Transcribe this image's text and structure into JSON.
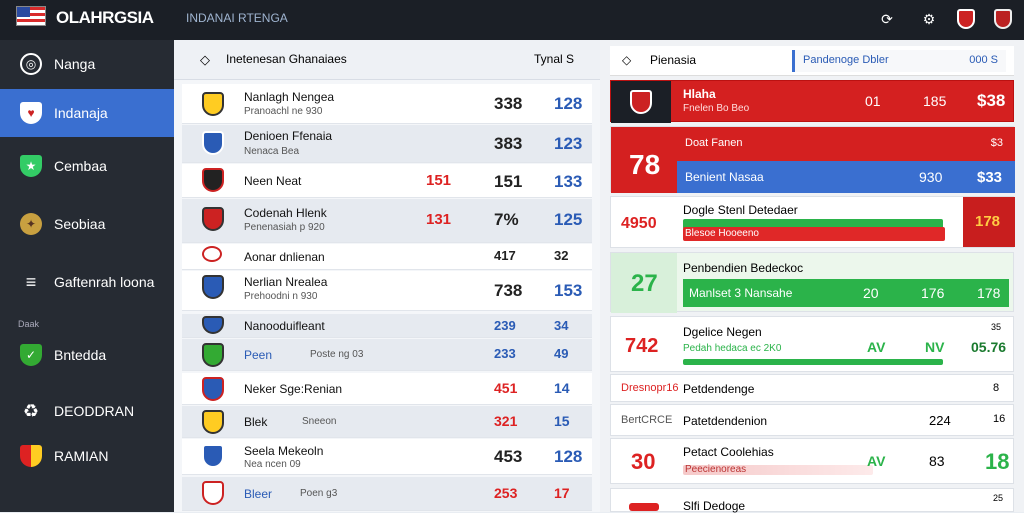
{
  "header": {
    "brand": "OLAHRGSIA",
    "subtitle": "INDANAI RTENGA"
  },
  "sidebar": {
    "items": [
      {
        "label": "Nanga",
        "icon": "target-icon"
      },
      {
        "label": "Indanaja",
        "icon": "shield-icon"
      },
      {
        "label": "Cembaa",
        "icon": "shield-icon"
      },
      {
        "label": "Seobiaa",
        "icon": "crest-icon"
      },
      {
        "label": "Gaftenrah loona",
        "icon": "menu-icon"
      },
      {
        "label": "Bntedda",
        "icon": "shield-icon"
      },
      {
        "label": "DEODDRAN",
        "icon": "recycle-icon"
      },
      {
        "label": "RAMIAN",
        "icon": "shield-icon"
      }
    ],
    "section": "Daak"
  },
  "table": {
    "title": "Inetenesan Ghanaiaes",
    "col_header": "Tynal S",
    "rows": [
      {
        "name": "Nanlagh Nengea",
        "sub": "Pranoachl ne 930",
        "a": "",
        "b": "338",
        "c": "128"
      },
      {
        "name": "Denioen Ffenaia",
        "sub": "Nenaca Bea",
        "a": "",
        "b": "383",
        "c": "123"
      },
      {
        "name": "Neen Neat",
        "sub": "",
        "a": "151",
        "b": "151",
        "c": "133"
      },
      {
        "name": "Codenah Hlenk",
        "sub": "Penenasiah p 920",
        "a": "131",
        "b": "7%",
        "c": "125"
      },
      {
        "name": "Aonar dnlienan",
        "sub": "",
        "a": "",
        "b": "417",
        "c": "32"
      },
      {
        "name": "Nerlian Nrealea",
        "sub": "Prehoodni n 930",
        "a": "",
        "b": "738",
        "c": "153"
      },
      {
        "name": "Nanooduifleant",
        "sub": "",
        "a": "",
        "b": "239",
        "c": "34"
      },
      {
        "name": "Peen",
        "sub": "Poste ng 03",
        "a": "",
        "b": "233",
        "c": "49"
      },
      {
        "name": "Neker Sge:Renian",
        "sub": "",
        "a": "",
        "b": "451",
        "c": "14"
      },
      {
        "name": "Blek",
        "sub": "Sneeon",
        "a": "",
        "b": "321",
        "c": "15"
      },
      {
        "name": "Seela Mekeoln",
        "sub": "Nea ncen 09",
        "a": "",
        "b": "453",
        "c": "128"
      },
      {
        "name": "Bleer",
        "sub": "Poen g3",
        "a": "",
        "b": "253",
        "c": "17"
      }
    ]
  },
  "panel": {
    "title": "Pienasia",
    "search_placeholder": "Pandenoge Dbler",
    "search_value": "000 S",
    "cards": [
      {
        "title": "Hlaha",
        "sub": "Fnelen Bo Beo",
        "v1": "01",
        "v2": "185",
        "v3": "$38"
      },
      {
        "title": "Doat Fanen",
        "sub": "Benient Nasaa",
        "big": "78",
        "v1": "930",
        "v3": "$33",
        "v4": "$3"
      },
      {
        "title": "Dogle Stenl Detedaer",
        "sub": "Blesoe Hooeeno",
        "big": "4950",
        "v3": "178"
      },
      {
        "title": "Penbendien Bedeckoc",
        "sub": "Manlset 3 Nansahe",
        "big": "27",
        "v1": "20",
        "v2": "176",
        "v3": "178"
      },
      {
        "title": "Dgelice Negen",
        "sub": "Pedah hedaca ec 2K0",
        "big": "742",
        "v1": "AV",
        "v2": "NV",
        "v3": "05.76",
        "v4": "35"
      },
      {
        "title": "Petdendenge",
        "big": "Dresnopr16",
        "v3": "8"
      },
      {
        "title": "Patetdendenion",
        "big": "BertCRCE",
        "v1": "224",
        "v3": "16"
      },
      {
        "title": "Petact Coolehias",
        "sub": "Peecienoreas",
        "big": "30",
        "v1": "AV",
        "v2": "83",
        "v3": "18"
      },
      {
        "title": "Slfi Dedoge",
        "v3": "25"
      }
    ]
  },
  "colors": {
    "accent": "#3a6fd0",
    "red": "#d42020",
    "green": "#2bb34a",
    "blue": "#3a6fd0"
  }
}
